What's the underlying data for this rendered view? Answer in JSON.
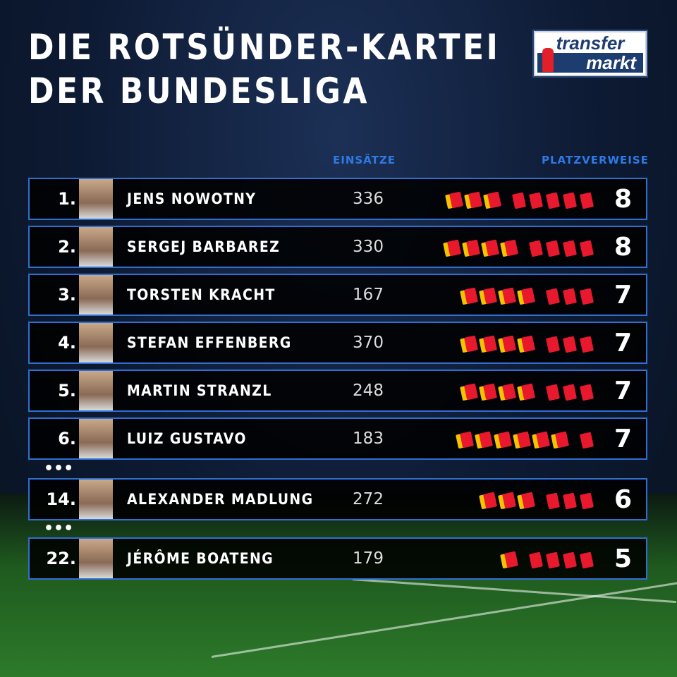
{
  "title_line1": "DIE ROTSÜNDER-KARTEI",
  "title_line2": "DER BUNDESLIGA",
  "logo": {
    "top": "transfer",
    "bottom": "markt"
  },
  "headers": {
    "apps": "EINSÄTZE",
    "reds": "PLATZVERWEISE"
  },
  "separator": "•••",
  "colors": {
    "border": "#2f6fd0",
    "header": "#2f7ae5",
    "red_card": "#e8182d",
    "yellow_card": "#f5c400"
  },
  "rows": [
    {
      "rank": "1.",
      "name": "JENS NOWOTNY",
      "apps": "336",
      "yellow_red": 3,
      "red": 5,
      "total": "8"
    },
    {
      "rank": "2.",
      "name": "SERGEJ BARBAREZ",
      "apps": "330",
      "yellow_red": 4,
      "red": 4,
      "total": "8"
    },
    {
      "rank": "3.",
      "name": "TORSTEN KRACHT",
      "apps": "167",
      "yellow_red": 4,
      "red": 3,
      "total": "7"
    },
    {
      "rank": "4.",
      "name": "STEFAN EFFENBERG",
      "apps": "370",
      "yellow_red": 4,
      "red": 3,
      "total": "7"
    },
    {
      "rank": "5.",
      "name": "MARTIN STRANZL",
      "apps": "248",
      "yellow_red": 4,
      "red": 3,
      "total": "7"
    },
    {
      "rank": "6.",
      "name": "LUIZ GUSTAVO",
      "apps": "183",
      "yellow_red": 6,
      "red": 1,
      "total": "7"
    },
    {
      "rank": "14.",
      "name": "ALEXANDER MADLUNG",
      "apps": "272",
      "yellow_red": 3,
      "red": 3,
      "total": "6"
    },
    {
      "rank": "22.",
      "name": "JÉRÔME BOATENG",
      "apps": "179",
      "yellow_red": 1,
      "red": 4,
      "total": "5"
    }
  ]
}
